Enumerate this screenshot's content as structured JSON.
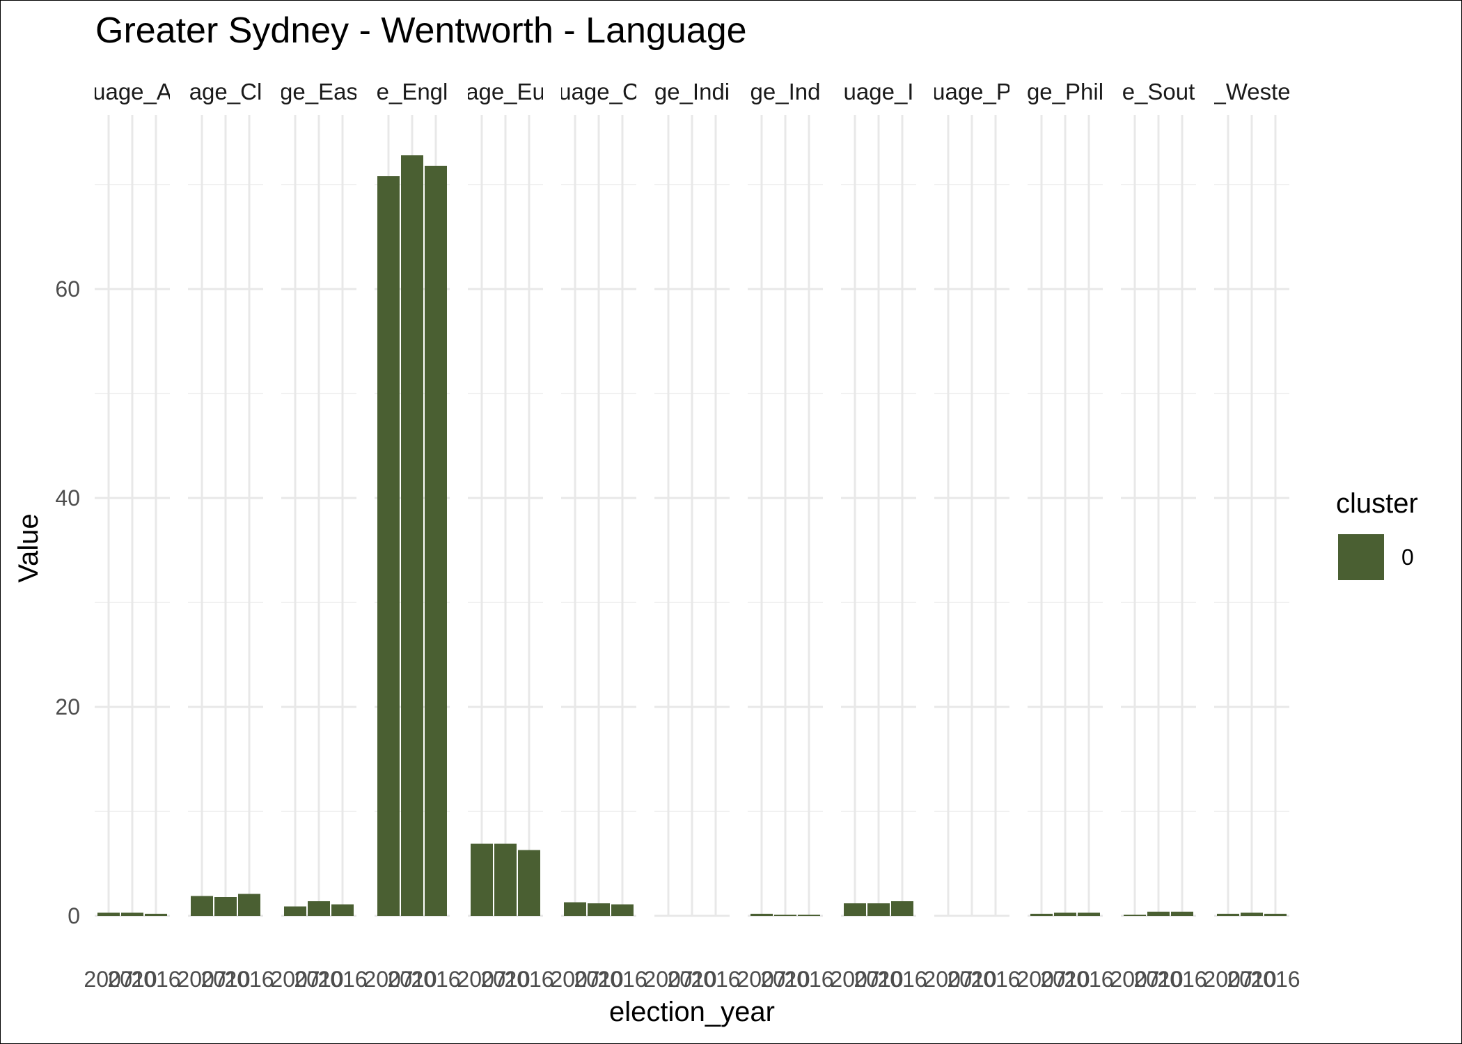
{
  "chart_data": {
    "type": "bar",
    "title": "Greater Sydney - Wentworth - Language",
    "xlabel": "election_year",
    "ylabel": "Value",
    "ylim": [
      0,
      73
    ],
    "yticks": [
      0,
      20,
      40,
      60
    ],
    "grid": true,
    "facet_labels": [
      "uage_A",
      "age_Cl",
      "ge_Eas",
      "e_Engl",
      "age_Eu",
      "uage_C",
      "ge_Indi",
      "ge_Ind",
      "uage_I",
      "uage_P",
      "ge_Phil",
      "e_Sout",
      "_Weste"
    ],
    "x": [
      "2007",
      "2010",
      "2016"
    ],
    "values": [
      [
        0.3,
        0.3,
        0.2
      ],
      [
        1.9,
        1.8,
        2.1
      ],
      [
        0.9,
        1.4,
        1.1
      ],
      [
        70.8,
        72.8,
        71.8
      ],
      [
        6.9,
        6.9,
        6.3
      ],
      [
        1.3,
        1.2,
        1.1
      ],
      [
        0.0,
        0.0,
        0.0
      ],
      [
        0.2,
        0.1,
        0.1
      ],
      [
        1.2,
        1.2,
        1.4
      ],
      [
        0.0,
        0.0,
        0.0
      ],
      [
        0.2,
        0.3,
        0.3
      ],
      [
        0.1,
        0.4,
        0.4
      ],
      [
        0.2,
        0.3,
        0.2
      ]
    ],
    "legend": {
      "title": "cluster",
      "entries": [
        "0"
      ],
      "placement": "right"
    },
    "bar_color": "#4a5f32"
  }
}
